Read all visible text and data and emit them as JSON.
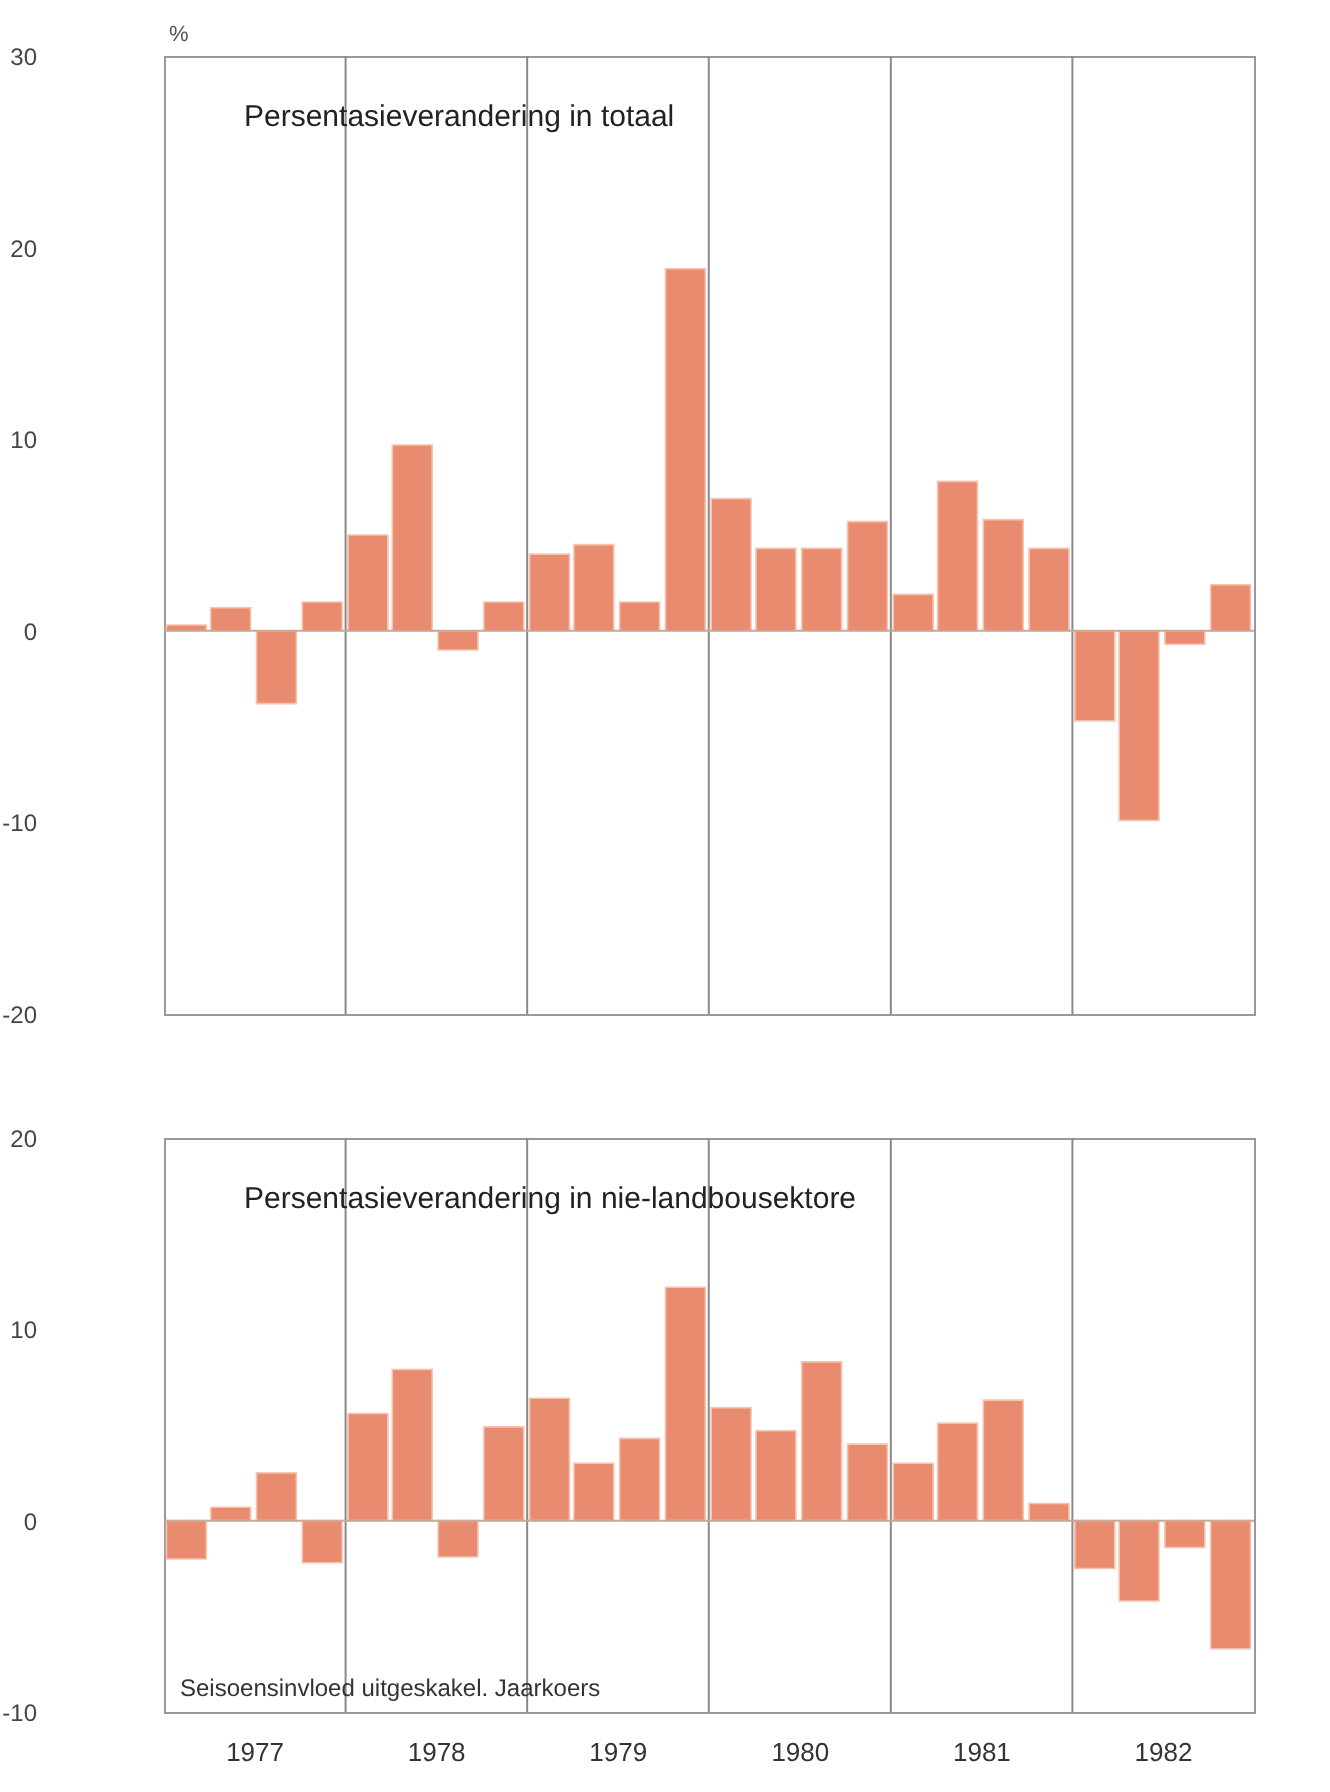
{
  "chart_data": [
    {
      "type": "bar",
      "title": "Persentasieverandering in totaal",
      "ylabel": "%",
      "x": [
        "1977-02-15",
        "1977-05-15",
        "1977-08-15",
        "1977-11-15",
        "1978-02-15",
        "1978-05-15",
        "1978-08-15",
        "1978-11-15",
        "1979-02-15",
        "1979-05-15",
        "1979-08-15",
        "1979-11-15",
        "1980-02-15",
        "1980-05-15",
        "1980-08-15",
        "1980-11-15",
        "1981-02-15",
        "1981-05-15",
        "1981-08-15",
        "1981-11-15",
        "1982-02-15",
        "1982-05-15",
        "1982-08-15",
        "1982-11-15"
      ],
      "series": [
        {
          "color": "#e98b6e",
          "values": [
            0.3,
            1.2,
            -3.8,
            1.5,
            5,
            9.7,
            -1,
            1.5,
            4,
            4.5,
            1.5,
            18.9,
            6.9,
            4.3,
            4.3,
            5.7,
            1.9,
            7.8,
            5.8,
            4.3,
            -4.7,
            -9.9,
            -0.7,
            2.4
          ]
        }
      ],
      "xlim": [
        "1977-01-01",
        "1983-01-01"
      ],
      "ylim": [
        -20,
        30
      ],
      "yticks": [
        -20,
        -10,
        0,
        10,
        20,
        30
      ],
      "tick_labels": "y",
      "ref_lines": [
        {
          "axis": "x",
          "value": "1978-01-01"
        },
        {
          "axis": "x",
          "value": "1979-01-01"
        },
        {
          "axis": "x",
          "value": "1980-01-01"
        },
        {
          "axis": "x",
          "value": "1981-01-01"
        },
        {
          "axis": "x",
          "value": "1982-01-01"
        },
        {
          "axis": "y",
          "value": 0
        }
      ]
    },
    {
      "type": "bar",
      "title": "Persentasieverandering in nie-landbousektore",
      "annotations": [
        "Seisoensinvloed uitgeskakel. Jaarkoers"
      ],
      "x": [
        "1977-02-15",
        "1977-05-15",
        "1977-08-15",
        "1977-11-15",
        "1978-02-15",
        "1978-05-15",
        "1978-08-15",
        "1978-11-15",
        "1979-02-15",
        "1979-05-15",
        "1979-08-15",
        "1979-11-15",
        "1980-02-15",
        "1980-05-15",
        "1980-08-15",
        "1980-11-15",
        "1981-02-15",
        "1981-05-15",
        "1981-08-15",
        "1981-11-15",
        "1982-02-15",
        "1982-05-15",
        "1982-08-15",
        "1982-11-15"
      ],
      "series": [
        {
          "color": "#e98b6e",
          "values": [
            -2,
            0.7,
            2.5,
            -2.2,
            5.6,
            7.9,
            -1.9,
            4.9,
            6.4,
            3,
            4.3,
            12.2,
            5.9,
            4.7,
            8.3,
            4,
            3,
            5.1,
            6.3,
            0.9,
            -2.5,
            -4.2,
            -1.4,
            -6.7
          ]
        }
      ],
      "xlim": [
        "1977-01-01",
        "1983-01-01"
      ],
      "ylim": [
        -10,
        20
      ],
      "yticks": [
        -10,
        0,
        10,
        20
      ],
      "xticks": [
        {
          "value": "1977-07-01",
          "label": "1977"
        },
        {
          "value": "1978-07-01",
          "label": "1978"
        },
        {
          "value": "1979-07-01",
          "label": "1979"
        },
        {
          "value": "1980-07-01",
          "label": "1980"
        },
        {
          "value": "1981-07-01",
          "label": "1981"
        },
        {
          "value": "1982-07-01",
          "label": "1982"
        }
      ],
      "ref_lines": [
        {
          "axis": "x",
          "value": "1978-01-01"
        },
        {
          "axis": "x",
          "value": "1979-01-01"
        },
        {
          "axis": "x",
          "value": "1980-01-01"
        },
        {
          "axis": "x",
          "value": "1981-01-01"
        },
        {
          "axis": "x",
          "value": "1982-01-01"
        },
        {
          "axis": "y",
          "value": 0
        }
      ]
    }
  ]
}
